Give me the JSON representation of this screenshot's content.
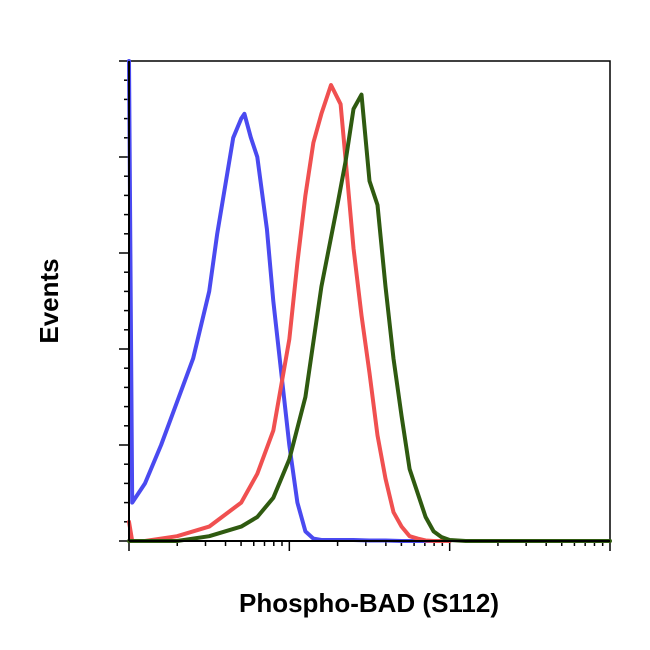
{
  "chart_data": {
    "type": "line",
    "title": "",
    "xlabel": "Phospho-BAD (S112)",
    "ylabel": "Events",
    "x_scale": "log",
    "xlim": [
      0,
      3
    ],
    "ylim": [
      0,
      1
    ],
    "grid": false,
    "tick_labels_shown": false,
    "series": [
      {
        "color": "#4a4af0",
        "x": [
          0.0,
          0.02,
          0.1,
          0.2,
          0.3,
          0.4,
          0.5,
          0.55,
          0.6,
          0.65,
          0.7,
          0.72,
          0.76,
          0.8,
          0.86,
          0.9,
          0.95,
          1.0,
          1.05,
          1.1,
          1.15,
          1.2,
          1.3,
          1.4,
          1.5,
          1.6,
          1.7,
          1.8,
          2.0
        ],
        "y": [
          1.0,
          0.08,
          0.12,
          0.2,
          0.29,
          0.38,
          0.52,
          0.64,
          0.74,
          0.84,
          0.88,
          0.89,
          0.84,
          0.8,
          0.65,
          0.5,
          0.35,
          0.2,
          0.08,
          0.02,
          0.005,
          0.002,
          0.002,
          0.002,
          0.001,
          0.001,
          0.0,
          0.0,
          0.0
        ]
      },
      {
        "color": "#f05050",
        "x": [
          0.0,
          0.02,
          0.1,
          0.3,
          0.5,
          0.7,
          0.8,
          0.9,
          1.0,
          1.05,
          1.1,
          1.15,
          1.2,
          1.26,
          1.32,
          1.36,
          1.4,
          1.45,
          1.5,
          1.55,
          1.6,
          1.65,
          1.7,
          1.75,
          1.8,
          1.85,
          1.9,
          2.0
        ],
        "y": [
          0.04,
          0.0,
          0.0,
          0.01,
          0.03,
          0.08,
          0.14,
          0.23,
          0.42,
          0.58,
          0.72,
          0.83,
          0.89,
          0.95,
          0.91,
          0.76,
          0.61,
          0.47,
          0.35,
          0.22,
          0.13,
          0.06,
          0.03,
          0.01,
          0.005,
          0.001,
          0.0,
          0.0
        ]
      },
      {
        "color": "#2f5a10",
        "x": [
          0.0,
          0.1,
          0.3,
          0.5,
          0.7,
          0.8,
          0.9,
          1.0,
          1.1,
          1.2,
          1.3,
          1.35,
          1.4,
          1.45,
          1.5,
          1.55,
          1.6,
          1.65,
          1.7,
          1.75,
          1.8,
          1.85,
          1.9,
          1.95,
          2.0,
          2.1,
          2.2,
          2.4,
          3.0
        ],
        "y": [
          0.0,
          0.0,
          0.0,
          0.01,
          0.03,
          0.05,
          0.09,
          0.17,
          0.3,
          0.53,
          0.7,
          0.79,
          0.9,
          0.93,
          0.75,
          0.7,
          0.53,
          0.38,
          0.26,
          0.15,
          0.1,
          0.05,
          0.02,
          0.008,
          0.002,
          0.0,
          0.0,
          0.0,
          0.0
        ]
      }
    ]
  }
}
